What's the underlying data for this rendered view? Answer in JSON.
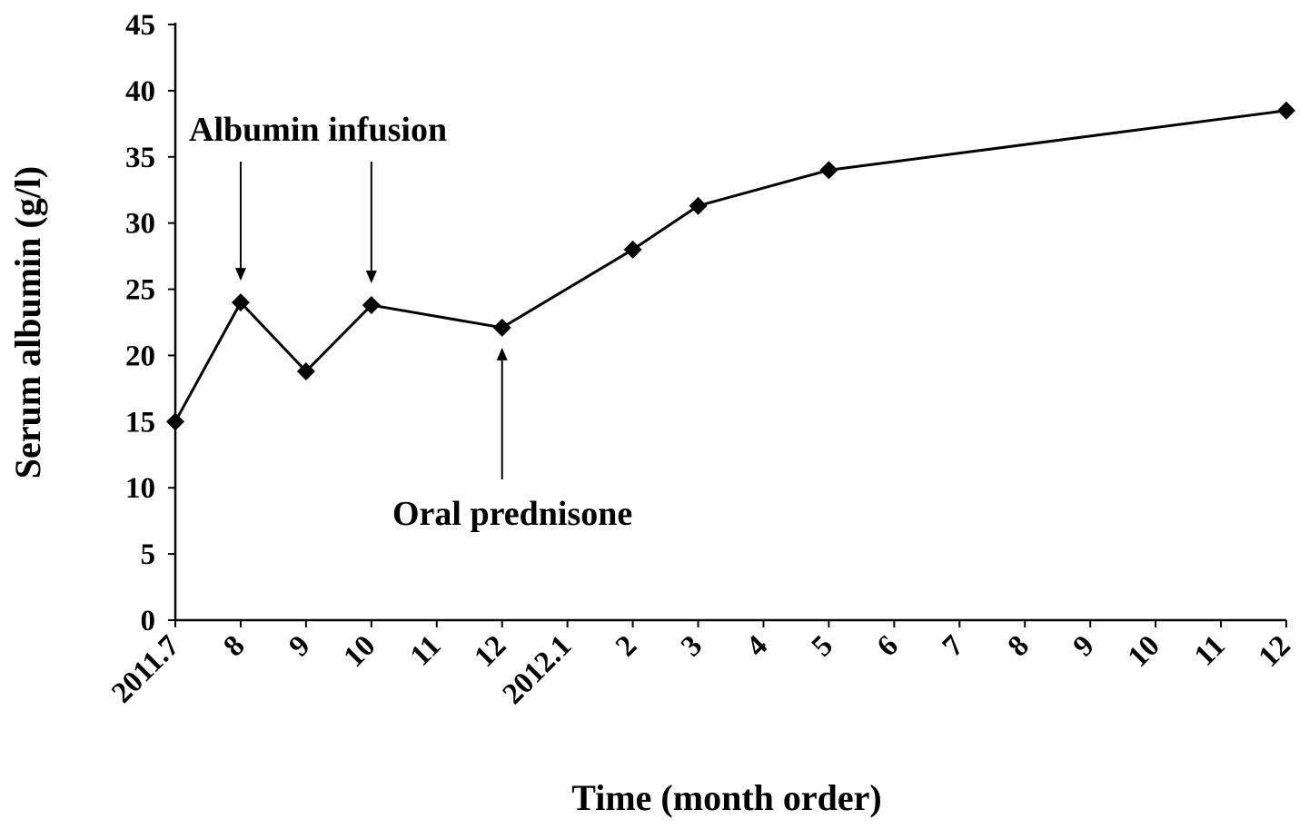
{
  "chart_data": {
    "type": "line",
    "title": "",
    "xlabel": "Time (month order)",
    "ylabel": "Serum albumin (g/l)",
    "ylim": [
      0,
      45
    ],
    "yticks": [
      0,
      5,
      10,
      15,
      20,
      25,
      30,
      35,
      40,
      45
    ],
    "categories": [
      "2011.7",
      "8",
      "9",
      "10",
      "11",
      "12",
      "2012.1",
      "2",
      "3",
      "4",
      "5",
      "6",
      "7",
      "8",
      "9",
      "10",
      "11",
      "12"
    ],
    "grid": false,
    "legend": "none",
    "series": [
      {
        "points": [
          {
            "category_index": 0,
            "value": 15.0
          },
          {
            "category_index": 1,
            "value": 24.0
          },
          {
            "category_index": 2,
            "value": 18.8
          },
          {
            "category_index": 3,
            "value": 23.8
          },
          {
            "category_index": 5,
            "value": 22.1
          },
          {
            "category_index": 7,
            "value": 28.0
          },
          {
            "category_index": 8,
            "value": 31.3
          },
          {
            "category_index": 10,
            "value": 34.0
          },
          {
            "category_index": 17,
            "value": 38.5
          }
        ]
      }
    ],
    "annotations": [
      {
        "text": "Albumin infusion",
        "targets": [
          1,
          3
        ],
        "direction": "down"
      },
      {
        "text": "Oral prednisone",
        "targets": [
          5
        ],
        "direction": "up"
      }
    ]
  }
}
